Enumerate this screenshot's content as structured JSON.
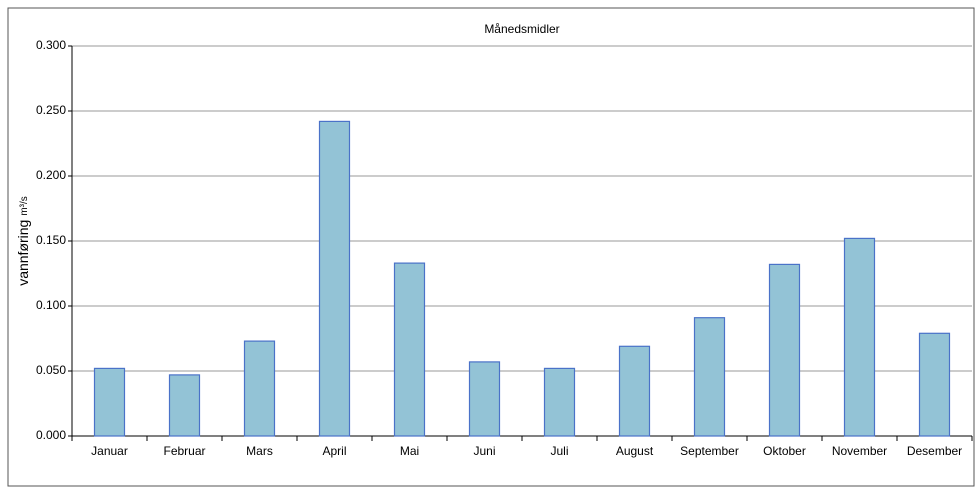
{
  "chart_data": {
    "type": "bar",
    "title": "Månedsmidler",
    "ylabel": "vannføring",
    "ylabel_unit": "m³/s",
    "categories": [
      "Januar",
      "Februar",
      "Mars",
      "April",
      "Mai",
      "Juni",
      "Juli",
      "August",
      "September",
      "Oktober",
      "November",
      "Desember"
    ],
    "values": [
      0.052,
      0.047,
      0.073,
      0.242,
      0.133,
      0.057,
      0.052,
      0.069,
      0.091,
      0.132,
      0.152,
      0.079
    ],
    "color": "#93c3d6",
    "edge_color": "#4a72c8",
    "ylim": [
      0,
      0.3
    ],
    "yticks": [
      {
        "value": 0,
        "label": "0.000"
      },
      {
        "value": 0.05,
        "label": "0.050"
      },
      {
        "value": 0.1,
        "label": "0.100"
      },
      {
        "value": 0.15,
        "label": "0.150"
      },
      {
        "value": 0.2,
        "label": "0.200"
      },
      {
        "value": 0.25,
        "label": "0.250"
      },
      {
        "value": 0.3,
        "label": "0.300"
      }
    ],
    "grid": true
  }
}
